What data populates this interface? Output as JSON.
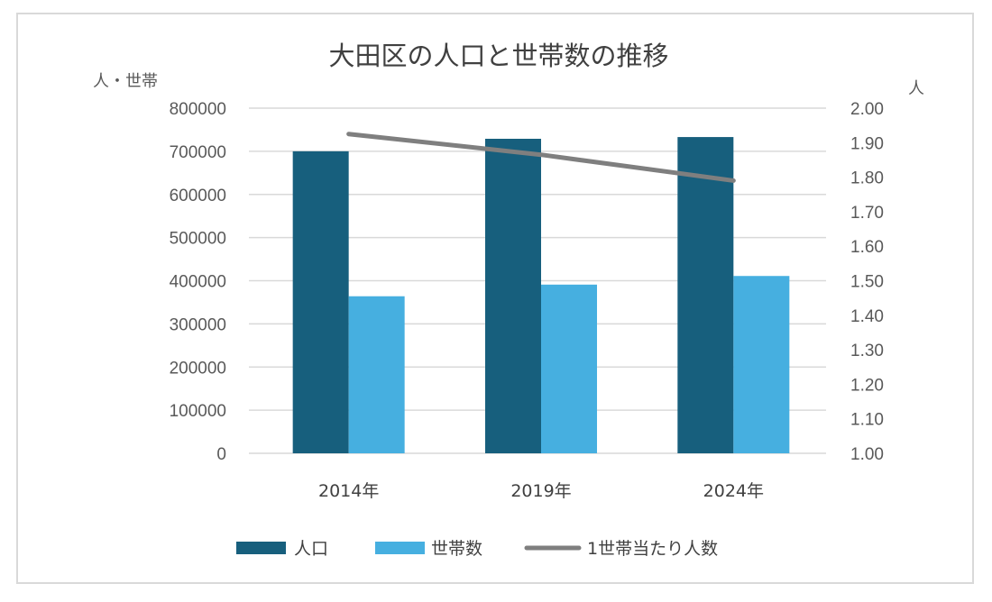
{
  "chart_data": {
    "type": "bar",
    "title": "大田区の人口と世帯数の推移",
    "ylabel": "人・世帯",
    "y2label": "人",
    "categories": [
      "2014年",
      "2019年",
      "2024年"
    ],
    "ylim": [
      0,
      800000
    ],
    "y2lim": [
      1.0,
      2.0
    ],
    "yticks": [
      "0",
      "100000",
      "200000",
      "300000",
      "400000",
      "500000",
      "600000",
      "700000",
      "800000"
    ],
    "y2ticks": [
      "1.00",
      "1.10",
      "1.20",
      "1.30",
      "1.40",
      "1.50",
      "1.60",
      "1.70",
      "1.80",
      "1.90",
      "2.00"
    ],
    "series": [
      {
        "name": "人口",
        "type": "bar",
        "axis": "left",
        "color": "#175f7d",
        "values": [
          700000,
          729000,
          733000
        ]
      },
      {
        "name": "世帯数",
        "type": "bar",
        "axis": "left",
        "color": "#46afe0",
        "values": [
          364000,
          391000,
          411000
        ]
      },
      {
        "name": "1世帯当たり人数",
        "type": "line",
        "axis": "right",
        "color": "#7f7f7f",
        "values": [
          1.925,
          1.865,
          1.79
        ]
      }
    ],
    "grid": true,
    "legend": "bottom"
  }
}
